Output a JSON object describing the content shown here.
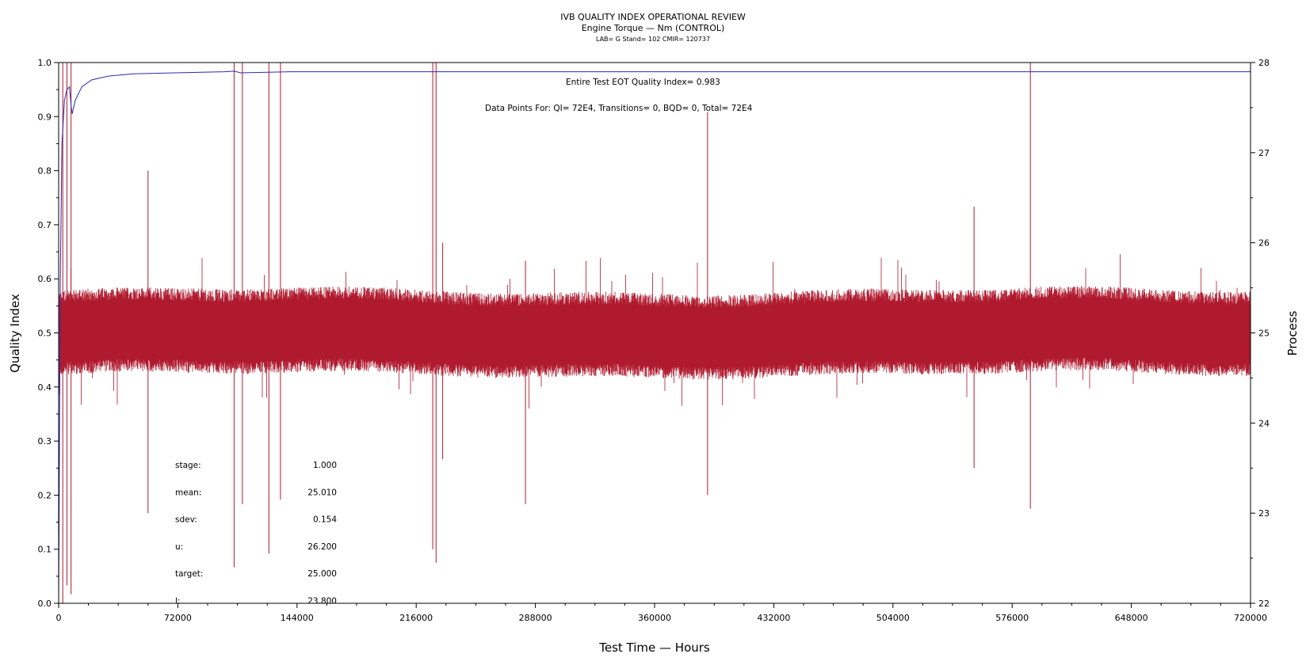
{
  "header": {
    "title": "IVB QUALITY INDEX OPERATIONAL REVIEW",
    "subtitle": "Engine Torque — Nm (CONTROL)",
    "info": "LAB= G Stand= 102 CMIR= 120737"
  },
  "annotations": {
    "eot": "Entire Test EOT Quality Index=   0.983",
    "datapoints": "Data Points For: QI=  72E4, Transitions=     0, BQD=     0, Total=  72E4"
  },
  "stats": [
    {
      "label": "stage:",
      "value": "1.000"
    },
    {
      "label": "mean:",
      "value": "25.010"
    },
    {
      "label": "sdev:",
      "value": "0.154"
    },
    {
      "label": "u:",
      "value": "26.200"
    },
    {
      "label": "target:",
      "value": "25.000"
    },
    {
      "label": "l:",
      "value": "23.800"
    }
  ],
  "colors": {
    "process": "#b01a2e",
    "quality_index": "#2a2ab0",
    "axis": "#000000"
  },
  "chart_data": {
    "type": "line",
    "xlabel": "Test Time — Hours",
    "ylabel_left": "Quality Index",
    "ylabel_right": "Process",
    "xlim": [
      0,
      720000
    ],
    "ylim_left": [
      0,
      1
    ],
    "ylim_right": [
      22,
      28
    ],
    "x_ticks": [
      0,
      72000,
      144000,
      216000,
      288000,
      360000,
      432000,
      504000,
      576000,
      648000,
      720000
    ],
    "y_left_ticks": [
      "0.0",
      "0.1",
      "0.2",
      "0.3",
      "0.4",
      "0.5",
      "0.6",
      "0.7",
      "0.8",
      "0.9",
      "1.0"
    ],
    "y_right_ticks": [
      "22",
      "23",
      "24",
      "25",
      "26",
      "27",
      "28"
    ],
    "grid": false,
    "series": [
      {
        "axis": "right",
        "style": "dense-band",
        "center": 25.01,
        "typical_low": 24.6,
        "typical_high": 25.4,
        "spikes": [
          {
            "x": 2500,
            "high": 28.0,
            "low": 22.0
          },
          {
            "x": 5000,
            "high": 28.0,
            "low": 22.2
          },
          {
            "x": 7500,
            "high": 28.0,
            "low": 22.1
          },
          {
            "x": 54000,
            "high": 26.8,
            "low": 23.0
          },
          {
            "x": 106000,
            "high": 28.0,
            "low": 22.4
          },
          {
            "x": 111000,
            "high": 28.0,
            "low": 23.1
          },
          {
            "x": 127000,
            "high": 28.0,
            "low": 22.55
          },
          {
            "x": 134000,
            "high": 28.0,
            "low": 23.15
          },
          {
            "x": 226000,
            "high": 28.0,
            "low": 22.6
          },
          {
            "x": 228000,
            "high": 28.0,
            "low": 22.45
          },
          {
            "x": 232000,
            "high": 26.0,
            "low": 23.6
          },
          {
            "x": 282000,
            "high": 25.8,
            "low": 23.1
          },
          {
            "x": 392000,
            "high": 27.45,
            "low": 23.2
          },
          {
            "x": 553000,
            "high": 26.4,
            "low": 23.5
          },
          {
            "x": 587000,
            "high": 28.0,
            "low": 23.05
          }
        ]
      },
      {
        "axis": "left",
        "style": "line",
        "x": [
          0,
          1000,
          2000,
          3500,
          5000,
          6500,
          7500,
          8200,
          10000,
          14000,
          20000,
          30000,
          45000,
          70000,
          100000,
          106000,
          110000,
          140000,
          720000
        ],
        "y": [
          0.0,
          0.6,
          0.85,
          0.93,
          0.95,
          0.955,
          0.92,
          0.905,
          0.93,
          0.955,
          0.968,
          0.975,
          0.979,
          0.981,
          0.983,
          0.984,
          0.981,
          0.983,
          0.983
        ]
      }
    ]
  }
}
